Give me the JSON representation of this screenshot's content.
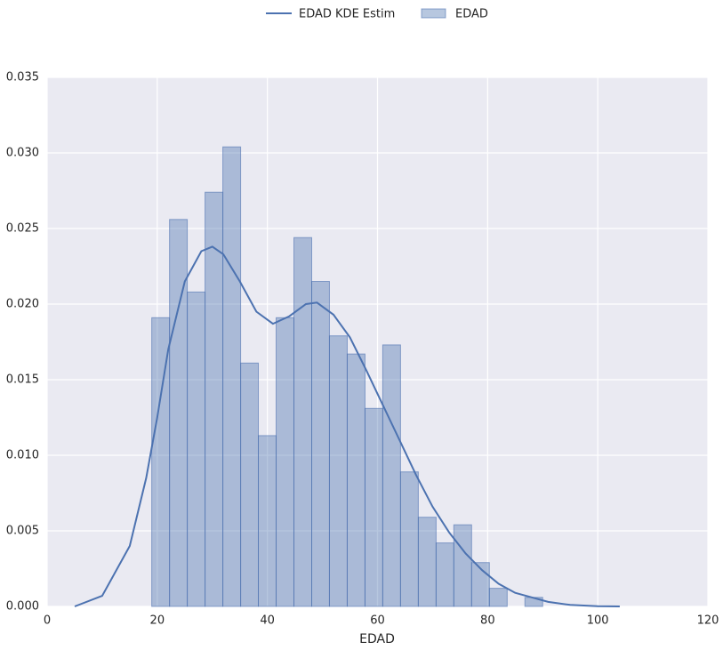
{
  "chart_data": {
    "type": "histogram",
    "xlabel": "EDAD",
    "bins": [
      19,
      22.23,
      25.45,
      28.68,
      31.91,
      35.14,
      38.36,
      41.59,
      44.82,
      48.05,
      51.27,
      54.5,
      57.73,
      60.95,
      64.18,
      67.41,
      70.64,
      73.86,
      77.09,
      80.32,
      83.55,
      86.77,
      90
    ],
    "name": "EDAD",
    "color": "#4c72b0",
    "values": [
      0.0191,
      0.0256,
      0.0208,
      0.0274,
      0.0304,
      0.0161,
      0.0113,
      0.0191,
      0.0244,
      0.0215,
      0.0179,
      0.0167,
      0.0131,
      0.0173,
      0.0089,
      0.0059,
      0.0042,
      0.0054,
      0.0029,
      0.0012,
      0,
      0.0006
    ],
    "kde": {
      "name": "EDAD KDE Estim",
      "color": "#4c72b0",
      "x": [
        5,
        10,
        15,
        18,
        20,
        22,
        25,
        28,
        30,
        32,
        35,
        38,
        41,
        44,
        47,
        49,
        52,
        55,
        58,
        61,
        64,
        67,
        70,
        73,
        76,
        79,
        82,
        85,
        88,
        91,
        95,
        100,
        104
      ],
      "values": [
        0,
        0.0007,
        0.004,
        0.0085,
        0.0125,
        0.017,
        0.0215,
        0.0235,
        0.0238,
        0.0233,
        0.0215,
        0.0195,
        0.0187,
        0.0192,
        0.02,
        0.0201,
        0.0193,
        0.0178,
        0.0156,
        0.0133,
        0.011,
        0.0087,
        0.0066,
        0.0049,
        0.0035,
        0.0024,
        0.0015,
        0.0009,
        0.0006,
        0.0003,
        0.0001,
        2e-05,
        0
      ]
    },
    "xlim": [
      0,
      120
    ],
    "xticks": [
      0,
      20,
      40,
      60,
      80,
      100,
      120
    ],
    "ylim": [
      0,
      0.035
    ],
    "yticks": [
      {
        "value": 0,
        "label": "0.000"
      },
      0.005,
      {
        "value": 0.01,
        "label": "0.010"
      },
      0.015,
      {
        "value": 0.02,
        "label": "0.020"
      },
      0.025,
      {
        "value": 0.03,
        "label": "0.030"
      },
      0.035
    ],
    "grid": true,
    "legend": "top"
  }
}
